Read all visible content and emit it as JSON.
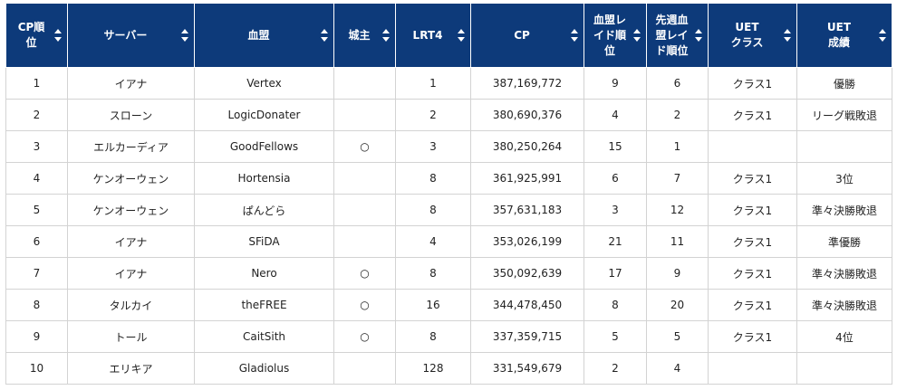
{
  "columns": [
    {
      "label": "CP順\n位"
    },
    {
      "label": "サーバー"
    },
    {
      "label": "血盟"
    },
    {
      "label": "城主"
    },
    {
      "label": "LRT4"
    },
    {
      "label": "CP"
    },
    {
      "label": "血盟レ\nイド順\n位"
    },
    {
      "label": "先週血\n盟レイ\nド順位"
    },
    {
      "label": "UET\nクラス"
    },
    {
      "label": "UET\n成績"
    }
  ],
  "rows": [
    {
      "rank": "1",
      "server": "イアナ",
      "clan": "Vertex",
      "castle": "",
      "lrt4": "1",
      "cp": "387,169,772",
      "raid": "9",
      "last_raid": "6",
      "uet_class": "クラス1",
      "uet_result": "優勝"
    },
    {
      "rank": "2",
      "server": "スローン",
      "clan": "LogicDonater",
      "castle": "",
      "lrt4": "2",
      "cp": "380,690,376",
      "raid": "4",
      "last_raid": "2",
      "uet_class": "クラス1",
      "uet_result": "リーグ戦敗退"
    },
    {
      "rank": "3",
      "server": "エルカーディア",
      "clan": "GoodFellows",
      "castle": "○",
      "lrt4": "3",
      "cp": "380,250,264",
      "raid": "15",
      "last_raid": "1",
      "uet_class": "",
      "uet_result": ""
    },
    {
      "rank": "4",
      "server": "ケンオーウェン",
      "clan": "Hortensia",
      "castle": "",
      "lrt4": "8",
      "cp": "361,925,991",
      "raid": "6",
      "last_raid": "7",
      "uet_class": "クラス1",
      "uet_result": "3位"
    },
    {
      "rank": "5",
      "server": "ケンオーウェン",
      "clan": "ぱんどら",
      "castle": "",
      "lrt4": "8",
      "cp": "357,631,183",
      "raid": "3",
      "last_raid": "12",
      "uet_class": "クラス1",
      "uet_result": "準々決勝敗退"
    },
    {
      "rank": "6",
      "server": "イアナ",
      "clan": "SFiDA",
      "castle": "",
      "lrt4": "4",
      "cp": "353,026,199",
      "raid": "21",
      "last_raid": "11",
      "uet_class": "クラス1",
      "uet_result": "準優勝"
    },
    {
      "rank": "7",
      "server": "イアナ",
      "clan": "Nero",
      "castle": "○",
      "lrt4": "8",
      "cp": "350,092,639",
      "raid": "17",
      "last_raid": "9",
      "uet_class": "クラス1",
      "uet_result": "準々決勝敗退"
    },
    {
      "rank": "8",
      "server": "タルカイ",
      "clan": "theFREE",
      "castle": "○",
      "lrt4": "16",
      "cp": "344,478,450",
      "raid": "8",
      "last_raid": "20",
      "uet_class": "クラス1",
      "uet_result": "準々決勝敗退"
    },
    {
      "rank": "9",
      "server": "トール",
      "clan": "CaitSith",
      "castle": "○",
      "lrt4": "8",
      "cp": "337,359,715",
      "raid": "5",
      "last_raid": "5",
      "uet_class": "クラス1",
      "uet_result": "4位"
    },
    {
      "rank": "10",
      "server": "エリキア",
      "clan": "Gladiolus",
      "castle": "",
      "lrt4": "128",
      "cp": "331,549,679",
      "raid": "2",
      "last_raid": "4",
      "uet_class": "",
      "uet_result": ""
    }
  ]
}
